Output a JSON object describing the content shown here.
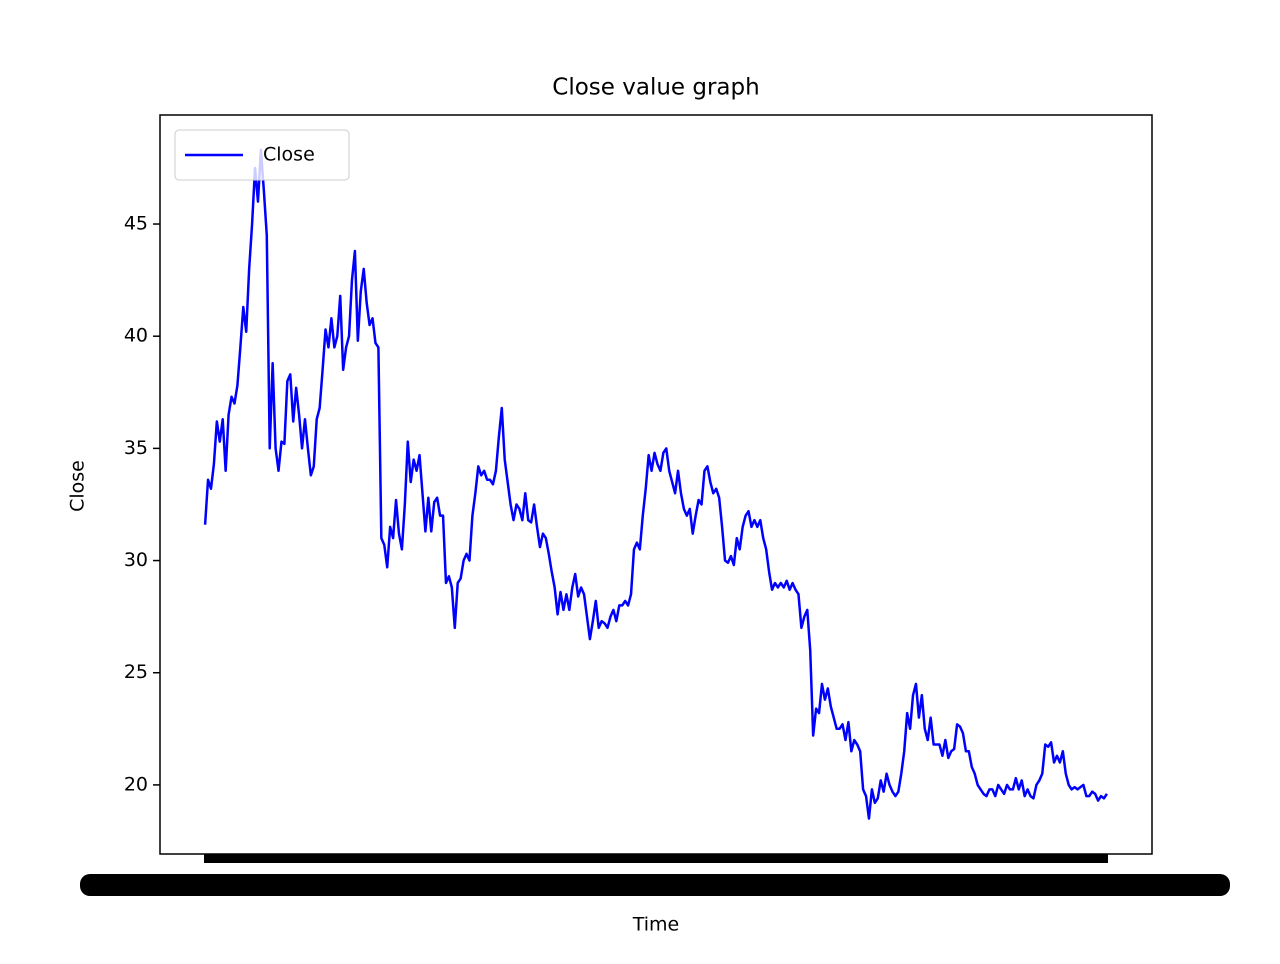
{
  "chart_data": {
    "type": "line",
    "title": "Close value graph",
    "x_label": "Time",
    "y_label": "Close",
    "ylim": [
      16.92,
      49.86
    ],
    "yticks": [
      20,
      25,
      30,
      35,
      40,
      45
    ],
    "legend": "upper left",
    "series": [
      {
        "name": "Close",
        "color": "#0000ff",
        "values": [
          31.6,
          33.6,
          33.2,
          34.3,
          36.2,
          35.3,
          36.3,
          34.0,
          36.5,
          37.3,
          37.0,
          37.8,
          39.5,
          41.3,
          40.2,
          43.0,
          45.0,
          47.5,
          46.0,
          48.3,
          46.5,
          44.5,
          35.0,
          38.8,
          35.0,
          34.0,
          35.3,
          35.2,
          38.0,
          38.3,
          36.2,
          37.7,
          36.5,
          35.0,
          36.3,
          35.0,
          33.8,
          34.2,
          36.3,
          36.8,
          38.5,
          40.3,
          39.5,
          40.8,
          39.5,
          40.0,
          41.8,
          38.5,
          39.5,
          40.0,
          42.5,
          43.8,
          39.8,
          42.0,
          43.0,
          41.5,
          40.5,
          40.8,
          39.7,
          39.5,
          31.0,
          30.7,
          29.7,
          31.5,
          31.0,
          32.7,
          31.2,
          30.5,
          32.5,
          35.3,
          33.5,
          34.5,
          34.0,
          34.7,
          33.0,
          31.3,
          32.8,
          31.3,
          32.6,
          32.8,
          32.0,
          32.0,
          29.0,
          29.3,
          28.8,
          27.0,
          29.0,
          29.2,
          30.0,
          30.3,
          30.0,
          32.0,
          33.0,
          34.2,
          33.8,
          34.0,
          33.6,
          33.6,
          33.4,
          34.0,
          35.5,
          36.8,
          34.5,
          33.5,
          32.5,
          31.8,
          32.5,
          32.3,
          31.8,
          33.0,
          31.8,
          31.7,
          32.5,
          31.5,
          30.6,
          31.2,
          31.0,
          30.3,
          29.5,
          28.8,
          27.6,
          28.6,
          27.8,
          28.5,
          27.8,
          28.8,
          29.4,
          28.4,
          28.8,
          28.5,
          27.5,
          26.5,
          27.3,
          28.2,
          27.0,
          27.3,
          27.2,
          27.0,
          27.5,
          27.8,
          27.3,
          28.0,
          28.0,
          28.2,
          28.0,
          28.5,
          30.5,
          30.8,
          30.5,
          32.0,
          33.2,
          34.7,
          34.0,
          34.8,
          34.3,
          34.0,
          34.8,
          35.0,
          34.0,
          33.5,
          33.0,
          34.0,
          33.0,
          32.3,
          32.0,
          32.3,
          31.2,
          32.0,
          32.7,
          32.5,
          34.0,
          34.2,
          33.5,
          33.0,
          33.2,
          32.8,
          31.5,
          30.0,
          29.9,
          30.2,
          29.8,
          31.0,
          30.5,
          31.5,
          32.0,
          32.2,
          31.5,
          31.8,
          31.5,
          31.8,
          31.0,
          30.5,
          29.5,
          28.7,
          29.0,
          28.8,
          29.0,
          28.8,
          29.1,
          28.7,
          29.0,
          28.7,
          28.5,
          27.0,
          27.5,
          27.8,
          26.0,
          22.2,
          23.4,
          23.2,
          24.5,
          23.8,
          24.3,
          23.5,
          23.0,
          22.5,
          22.5,
          22.7,
          22.0,
          22.8,
          21.5,
          22.0,
          21.8,
          21.5,
          19.8,
          19.5,
          18.5,
          19.8,
          19.2,
          19.4,
          20.2,
          19.7,
          20.5,
          20.0,
          19.7,
          19.5,
          19.7,
          20.5,
          21.5,
          23.2,
          22.5,
          24.0,
          24.5,
          23.0,
          24.0,
          22.5,
          22.0,
          23.0,
          21.8,
          21.8,
          21.8,
          21.3,
          22.0,
          21.2,
          21.5,
          21.6,
          22.7,
          22.6,
          22.3,
          21.5,
          21.5,
          20.8,
          20.5,
          20.0,
          19.8,
          19.6,
          19.5,
          19.8,
          19.8,
          19.5,
          20.0,
          19.8,
          19.6,
          20.0,
          19.8,
          19.8,
          20.3,
          19.8,
          20.2,
          19.5,
          19.8,
          19.5,
          19.4,
          20.0,
          20.2,
          20.5,
          21.8,
          21.7,
          21.9,
          21.0,
          21.3,
          21.0,
          21.5,
          20.5,
          20.0,
          19.8,
          19.9,
          19.8,
          19.9,
          20.0,
          19.5,
          19.5,
          19.7,
          19.6,
          19.3,
          19.5,
          19.4,
          19.6
        ]
      }
    ]
  }
}
